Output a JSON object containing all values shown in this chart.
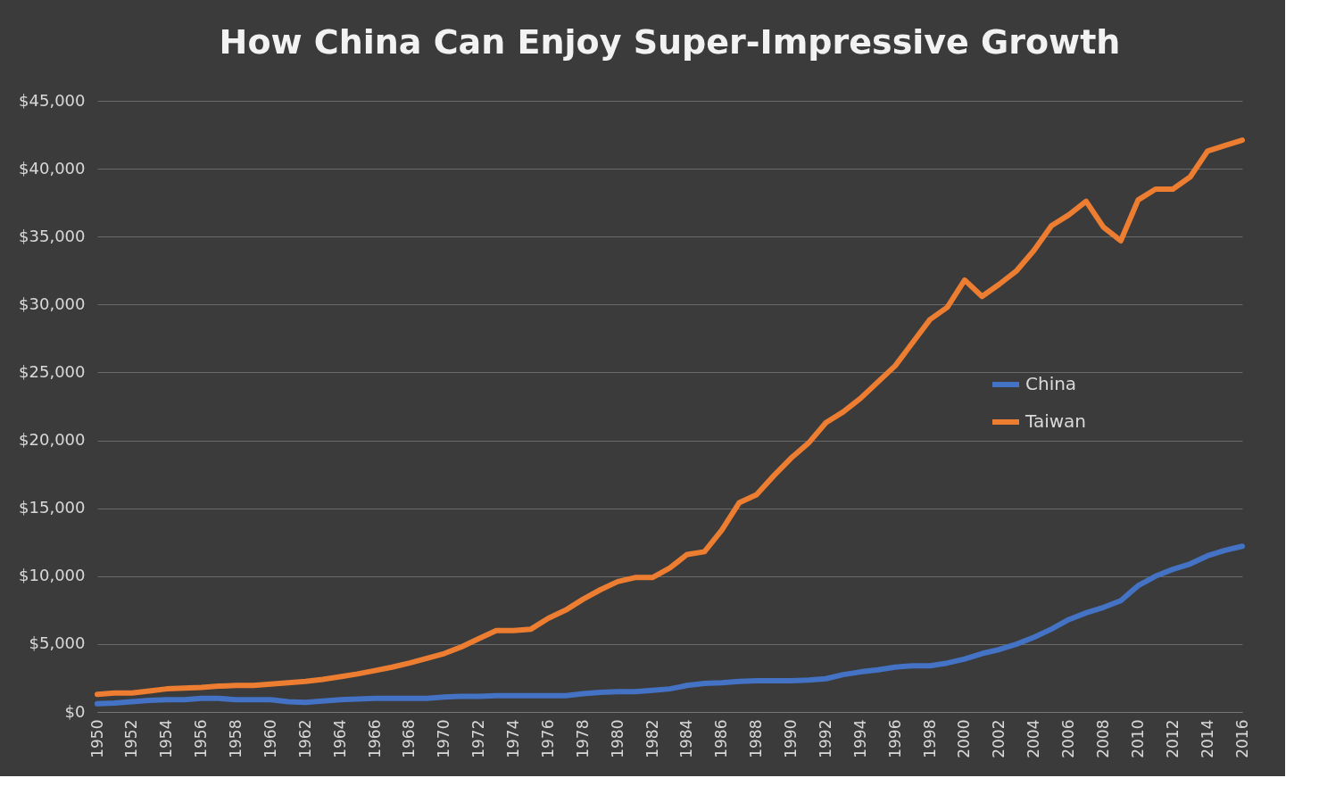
{
  "chart_data": {
    "type": "line",
    "title": "How China  Can  Enjoy  Super-Impressive  Growth",
    "x": [
      1950,
      1951,
      1952,
      1953,
      1954,
      1955,
      1956,
      1957,
      1958,
      1959,
      1960,
      1961,
      1962,
      1963,
      1964,
      1965,
      1966,
      1967,
      1968,
      1969,
      1970,
      1971,
      1972,
      1973,
      1974,
      1975,
      1976,
      1977,
      1978,
      1979,
      1980,
      1981,
      1982,
      1983,
      1984,
      1985,
      1986,
      1987,
      1988,
      1989,
      1990,
      1991,
      1992,
      1993,
      1994,
      1995,
      1996,
      1997,
      1998,
      1999,
      2000,
      2001,
      2002,
      2003,
      2004,
      2005,
      2006,
      2007,
      2008,
      2009,
      2010,
      2011,
      2012,
      2013,
      2014,
      2015,
      2016
    ],
    "series": [
      {
        "name": "China",
        "color": "#4472c4",
        "values": [
          600,
          650,
          750,
          850,
          900,
          900,
          1000,
          1000,
          900,
          900,
          900,
          750,
          700,
          800,
          900,
          950,
          1000,
          1000,
          1000,
          1000,
          1100,
          1150,
          1150,
          1200,
          1200,
          1200,
          1200,
          1200,
          1350,
          1450,
          1500,
          1500,
          1600,
          1700,
          1950,
          2100,
          2150,
          2250,
          2300,
          2300,
          2300,
          2350,
          2450,
          2750,
          2950,
          3100,
          3300,
          3400,
          3400,
          3600,
          3900,
          4300,
          4600,
          5000,
          5500,
          6100,
          6800,
          7300,
          7700,
          8200,
          9300,
          10000,
          10500,
          10900,
          11500,
          11900,
          12200
        ]
      },
      {
        "name": "Taiwan",
        "color": "#ed7d31",
        "values": [
          1300,
          1400,
          1400,
          1550,
          1700,
          1750,
          1800,
          1900,
          1950,
          1950,
          2050,
          2150,
          2250,
          2400,
          2600,
          2800,
          3050,
          3300,
          3600,
          3950,
          4300,
          4800,
          5400,
          6000,
          6000,
          6100,
          6900,
          7500,
          8300,
          9000,
          9600,
          9900,
          9900,
          10600,
          11600,
          11800,
          13400,
          15400,
          16000,
          17400,
          18700,
          19800,
          21300,
          22100,
          23100,
          24300,
          25500,
          27200,
          28900,
          29800,
          31800,
          30600,
          31500,
          32500,
          34000,
          35800,
          36600,
          37600,
          35700,
          34700,
          37700,
          38500,
          38500,
          39400,
          41300,
          41700,
          42100
        ]
      }
    ],
    "xlim": [
      1950,
      2016
    ],
    "xticks": [
      1950,
      1952,
      1954,
      1956,
      1958,
      1960,
      1962,
      1964,
      1966,
      1968,
      1970,
      1972,
      1974,
      1976,
      1978,
      1980,
      1982,
      1984,
      1986,
      1988,
      1990,
      1992,
      1994,
      1996,
      1998,
      2000,
      2002,
      2004,
      2006,
      2008,
      2010,
      2012,
      2014,
      2016
    ],
    "ylim": [
      0,
      45000
    ],
    "yticks": [
      {
        "value": 0,
        "label": "$0"
      },
      {
        "value": 5000,
        "label": "$5,000"
      },
      {
        "value": 10000,
        "label": "$10,000"
      },
      {
        "value": 15000,
        "label": "$15,000"
      },
      {
        "value": 20000,
        "label": "$20,000"
      },
      {
        "value": 25000,
        "label": "$25,000"
      },
      {
        "value": 30000,
        "label": "$30,000"
      },
      {
        "value": 35000,
        "label": "$35,000"
      },
      {
        "value": 40000,
        "label": "$40,000"
      },
      {
        "value": 45000,
        "label": "$45,000"
      }
    ],
    "grid": "y",
    "legend": "right",
    "marker": "none",
    "line_style": "solid"
  }
}
